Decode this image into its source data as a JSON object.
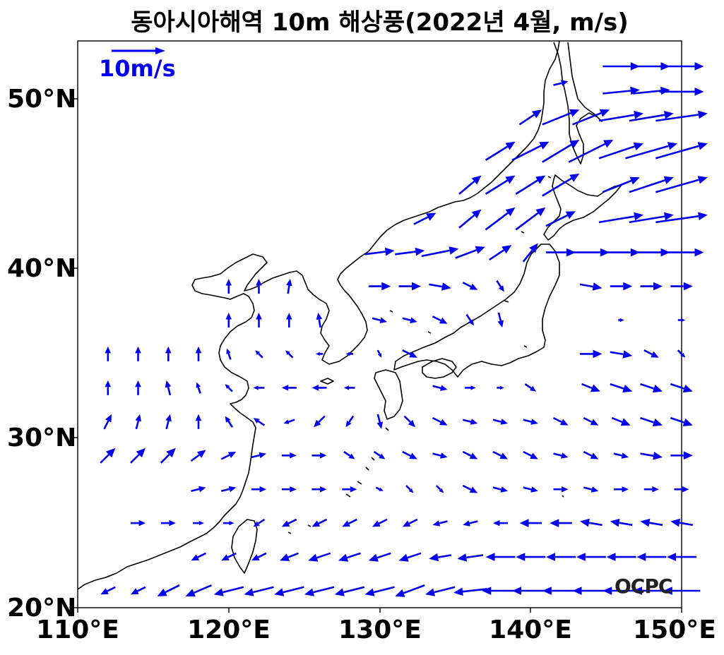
{
  "title": "동아시아해역 10m 해상풍(2022년 4월, m/s)",
  "axes": {
    "x_ticks": [
      "110°E",
      "120°E",
      "130°E",
      "140°E",
      "150°E"
    ],
    "y_ticks": [
      "50°N",
      "40°N",
      "30°N",
      "20°N"
    ]
  },
  "reference_vector": {
    "label": "10m/s",
    "speed": 10
  },
  "brand": "OCPC",
  "colors": {
    "vector": "#0000ee",
    "coast": "#000000"
  },
  "chart_data": {
    "type": "vector-field",
    "title": "동아시아해역 10m 해상풍(2022년 4월, m/s)",
    "xlabel": "",
    "ylabel": "",
    "xlim": [
      110,
      150
    ],
    "ylim": [
      20,
      53.5
    ],
    "units": "m/s",
    "grid_spacing_deg": 2,
    "vectors_note": "wind vectors [lon, lat, u, v]",
    "vectors": [
      [
        146,
        52,
        5,
        0
      ],
      [
        148,
        52,
        5,
        0
      ],
      [
        150,
        52,
        6,
        0
      ],
      [
        142,
        51,
        2,
        0.5
      ],
      [
        146,
        50.5,
        5,
        0.5
      ],
      [
        148,
        50.5,
        5,
        0.5
      ],
      [
        150,
        50.5,
        6,
        0
      ],
      [
        140,
        49,
        3,
        2
      ],
      [
        142,
        49,
        5,
        2
      ],
      [
        144,
        49,
        5,
        2
      ],
      [
        146,
        49,
        6,
        1
      ],
      [
        148,
        49,
        6,
        1
      ],
      [
        150,
        49,
        7,
        1
      ],
      [
        138,
        47,
        4,
        2.5
      ],
      [
        140,
        47,
        5,
        2.5
      ],
      [
        142,
        47,
        5,
        3
      ],
      [
        144,
        47,
        6,
        3
      ],
      [
        146,
        47,
        6,
        2
      ],
      [
        148,
        47,
        7,
        2
      ],
      [
        150,
        47,
        7,
        2
      ],
      [
        136,
        45,
        3,
        2.5
      ],
      [
        138,
        45,
        4,
        2.5
      ],
      [
        140,
        45,
        4,
        2.5
      ],
      [
        142,
        45,
        5,
        3
      ],
      [
        146,
        45,
        5,
        2
      ],
      [
        148,
        45,
        6,
        2
      ],
      [
        150,
        45,
        7,
        2
      ],
      [
        133,
        43,
        3,
        1.5
      ],
      [
        136,
        43,
        3,
        2.5
      ],
      [
        138,
        43,
        4,
        3
      ],
      [
        140,
        43,
        4,
        3
      ],
      [
        142,
        43,
        4,
        2
      ],
      [
        146,
        43,
        6,
        1
      ],
      [
        148,
        43,
        6,
        1
      ],
      [
        150,
        43,
        7,
        1
      ],
      [
        130,
        41,
        4,
        0.5
      ],
      [
        132,
        41,
        4,
        0.5
      ],
      [
        134,
        41,
        5,
        1
      ],
      [
        136,
        41,
        4,
        1.5
      ],
      [
        138,
        41,
        3,
        2
      ],
      [
        140,
        41,
        2,
        2.5
      ],
      [
        142,
        41,
        4,
        0
      ],
      [
        144,
        41,
        5,
        0
      ],
      [
        146,
        41,
        5,
        0
      ],
      [
        148,
        41,
        5,
        0
      ],
      [
        150,
        41,
        6,
        0
      ],
      [
        120,
        39,
        0,
        2
      ],
      [
        122,
        39,
        0,
        2
      ],
      [
        124,
        39,
        0.3,
        2
      ],
      [
        130,
        39,
        3,
        0
      ],
      [
        132,
        39,
        3,
        0
      ],
      [
        134,
        39,
        3,
        -0.5
      ],
      [
        136,
        39,
        2,
        -1
      ],
      [
        138,
        39,
        1,
        -1.5
      ],
      [
        144,
        39,
        3,
        -0.5
      ],
      [
        146,
        39,
        3,
        0
      ],
      [
        148,
        39,
        3,
        0
      ],
      [
        150,
        39,
        3,
        0
      ],
      [
        120,
        37,
        0,
        2
      ],
      [
        122,
        37,
        0,
        2
      ],
      [
        124,
        37,
        0,
        2
      ],
      [
        126,
        37,
        -0.3,
        2
      ],
      [
        130,
        37,
        2,
        -0.5
      ],
      [
        132,
        37,
        2,
        -0.5
      ],
      [
        134,
        37,
        2,
        -1
      ],
      [
        136,
        37,
        1,
        -1.5
      ],
      [
        138,
        37,
        0.5,
        -2
      ],
      [
        146,
        37,
        0.8,
        0
      ],
      [
        150,
        37,
        1,
        0
      ],
      [
        112,
        35,
        0,
        2
      ],
      [
        114,
        35,
        0,
        2
      ],
      [
        116,
        35,
        0,
        2
      ],
      [
        118,
        35,
        0,
        2
      ],
      [
        120,
        35,
        -0.5,
        1.5
      ],
      [
        122,
        35,
        -1,
        1
      ],
      [
        124,
        35,
        -1,
        1
      ],
      [
        126,
        35,
        -1,
        0
      ],
      [
        128,
        35,
        -1,
        0
      ],
      [
        130,
        35,
        0.5,
        -1
      ],
      [
        132,
        35,
        2,
        -1
      ],
      [
        144,
        35,
        3,
        0
      ],
      [
        146,
        35,
        3,
        -0.5
      ],
      [
        148,
        35,
        2,
        -1
      ],
      [
        150,
        35,
        1,
        -1
      ],
      [
        112,
        33,
        0,
        2
      ],
      [
        114,
        33,
        0,
        2
      ],
      [
        116,
        33,
        -0.5,
        2
      ],
      [
        118,
        33,
        -0.5,
        1.5
      ],
      [
        120,
        33,
        -1,
        1
      ],
      [
        122,
        33,
        -1.5,
        0
      ],
      [
        124,
        33,
        -2,
        0
      ],
      [
        126,
        33,
        -2,
        0
      ],
      [
        128,
        33,
        -1.5,
        0
      ],
      [
        134,
        33,
        2,
        -0.5
      ],
      [
        136,
        33,
        1.5,
        0
      ],
      [
        138,
        33,
        1,
        0
      ],
      [
        140,
        33,
        1.5,
        -1
      ],
      [
        144,
        33,
        2.5,
        -1
      ],
      [
        146,
        33,
        3,
        -1
      ],
      [
        148,
        33,
        3,
        -1
      ],
      [
        150,
        33,
        3,
        -1
      ],
      [
        112,
        31,
        1,
        2
      ],
      [
        114,
        31,
        0.5,
        2
      ],
      [
        116,
        31,
        0.5,
        2
      ],
      [
        118,
        31,
        0,
        2
      ],
      [
        120,
        31,
        -1,
        1.5
      ],
      [
        122,
        31,
        -1.5,
        1
      ],
      [
        124,
        31,
        -1.5,
        -0.5
      ],
      [
        126,
        31,
        -1.5,
        -1.5
      ],
      [
        128,
        31,
        -1,
        -1.5
      ],
      [
        130,
        31,
        0.5,
        -2
      ],
      [
        132,
        31,
        1.5,
        -1.5
      ],
      [
        134,
        31,
        2,
        -1
      ],
      [
        136,
        31,
        2,
        -0.5
      ],
      [
        138,
        31,
        2,
        -0.5
      ],
      [
        140,
        31,
        2,
        -0.5
      ],
      [
        142,
        31,
        2,
        -1
      ],
      [
        144,
        31,
        2,
        -1
      ],
      [
        146,
        31,
        2.5,
        -1
      ],
      [
        148,
        31,
        3,
        -1
      ],
      [
        150,
        31,
        3,
        -1
      ],
      [
        112,
        29,
        2,
        2
      ],
      [
        114,
        29,
        2,
        2
      ],
      [
        116,
        29,
        2,
        2
      ],
      [
        118,
        29,
        2,
        1.5
      ],
      [
        120,
        29,
        2,
        1
      ],
      [
        122,
        29,
        2,
        0.5
      ],
      [
        124,
        29,
        2,
        0
      ],
      [
        126,
        29,
        2,
        0
      ],
      [
        128,
        29,
        1.5,
        -1
      ],
      [
        130,
        29,
        1.5,
        -1
      ],
      [
        132,
        29,
        2,
        -1
      ],
      [
        134,
        29,
        2,
        -0.5
      ],
      [
        136,
        29,
        2,
        -1
      ],
      [
        138,
        29,
        2,
        -1
      ],
      [
        140,
        29,
        2,
        -1
      ],
      [
        142,
        29,
        2,
        -0.5
      ],
      [
        144,
        29,
        2,
        -1
      ],
      [
        146,
        29,
        2,
        -0.5
      ],
      [
        148,
        29,
        3,
        -0.5
      ],
      [
        150,
        29,
        3,
        0
      ],
      [
        118,
        27,
        2,
        0.5
      ],
      [
        120,
        27,
        2,
        0.5
      ],
      [
        122,
        27,
        2,
        0
      ],
      [
        124,
        27,
        2,
        0
      ],
      [
        126,
        27,
        2,
        0
      ],
      [
        128,
        27,
        2,
        0
      ],
      [
        130,
        27,
        1,
        -0.5
      ],
      [
        132,
        27,
        1,
        -1
      ],
      [
        134,
        27,
        1,
        -1
      ],
      [
        136,
        27,
        2,
        -1
      ],
      [
        138,
        27,
        2,
        -0.5
      ],
      [
        140,
        27,
        2,
        -0.5
      ],
      [
        142,
        27,
        2,
        0
      ],
      [
        144,
        27,
        2,
        -0.5
      ],
      [
        146,
        27,
        2,
        0
      ],
      [
        148,
        27,
        2,
        0
      ],
      [
        150,
        27,
        2,
        0
      ],
      [
        114,
        25,
        2,
        0
      ],
      [
        116,
        25,
        2,
        0
      ],
      [
        118,
        25,
        1.5,
        0
      ],
      [
        120,
        25,
        1.5,
        0
      ],
      [
        122,
        25,
        -1.5,
        -1
      ],
      [
        124,
        25,
        -2,
        -1
      ],
      [
        126,
        25,
        -2,
        -1
      ],
      [
        128,
        25,
        -2,
        -1
      ],
      [
        130,
        25,
        -2,
        -1
      ],
      [
        132,
        25,
        -2,
        -1
      ],
      [
        134,
        25,
        -2,
        -0.5
      ],
      [
        136,
        25,
        -2,
        -0.5
      ],
      [
        138,
        25,
        -2,
        0
      ],
      [
        140,
        25,
        -3,
        0
      ],
      [
        142,
        25,
        -3,
        0
      ],
      [
        144,
        25,
        -3,
        0.5
      ],
      [
        146,
        25,
        -3,
        0.5
      ],
      [
        148,
        25,
        -3,
        0.5
      ],
      [
        150,
        25,
        -3,
        0.5
      ],
      [
        118,
        23,
        -2,
        -1
      ],
      [
        120,
        23,
        -2,
        -1
      ],
      [
        122,
        23,
        -2,
        -1
      ],
      [
        124,
        23,
        -2.5,
        -1
      ],
      [
        126,
        23,
        -3,
        -1
      ],
      [
        128,
        23,
        -3,
        -1
      ],
      [
        130,
        23,
        -3,
        -1
      ],
      [
        132,
        23,
        -3,
        -1
      ],
      [
        134,
        23,
        -3,
        -0.5
      ],
      [
        136,
        23,
        -3.5,
        -0.5
      ],
      [
        138,
        23,
        -4,
        0
      ],
      [
        140,
        23,
        -4,
        0
      ],
      [
        142,
        23,
        -4,
        0
      ],
      [
        144,
        23,
        -4,
        0
      ],
      [
        146,
        23,
        -4,
        0
      ],
      [
        148,
        23,
        -4,
        0
      ],
      [
        150,
        23,
        -4,
        0
      ],
      [
        112,
        21,
        -2,
        -1
      ],
      [
        114,
        21,
        -2,
        -1
      ],
      [
        116,
        21,
        -3,
        -1.5
      ],
      [
        118,
        21,
        -3.5,
        -1.5
      ],
      [
        120,
        21,
        -4,
        -1
      ],
      [
        122,
        21,
        -4,
        -1
      ],
      [
        124,
        21,
        -4,
        -1
      ],
      [
        126,
        21,
        -4,
        -1
      ],
      [
        128,
        21,
        -4,
        -1
      ],
      [
        130,
        21,
        -4,
        -1
      ],
      [
        132,
        21,
        -4,
        -1.5
      ],
      [
        134,
        21,
        -4,
        -1
      ],
      [
        136,
        21,
        -4.5,
        -0.5
      ],
      [
        138,
        21,
        -5,
        0
      ],
      [
        140,
        21,
        -5,
        0
      ],
      [
        142,
        21,
        -5,
        0
      ],
      [
        144,
        21,
        -5,
        0
      ],
      [
        146,
        21,
        -5,
        0
      ],
      [
        148,
        21,
        -5,
        0
      ],
      [
        150,
        21,
        -5,
        0
      ]
    ]
  }
}
